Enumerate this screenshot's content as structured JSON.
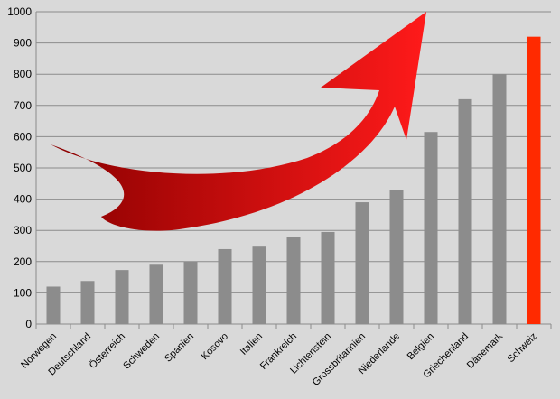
{
  "chart_data": {
    "type": "bar",
    "title": "",
    "xlabel": "",
    "ylabel": "",
    "ylim": [
      0,
      1000
    ],
    "yticks": [
      0,
      100,
      200,
      300,
      400,
      500,
      600,
      700,
      800,
      900,
      1000
    ],
    "grid": true,
    "legend": "none",
    "categories": [
      "Norwegen",
      "Deutschland",
      "Österreich",
      "Schweden",
      "Spanien",
      "Kosovo",
      "Italien",
      "Frankreich",
      "Lichtenstein",
      "Grossbritannien",
      "Niederlande",
      "Belgien",
      "Griechenland",
      "Dänemark",
      "Schweiz"
    ],
    "values": [
      120,
      138,
      173,
      190,
      200,
      240,
      248,
      280,
      295,
      390,
      428,
      615,
      720,
      800,
      920
    ],
    "highlight_category": "Schweiz",
    "colors": {
      "bar": "#8c8c8c",
      "highlight_bar": "#ff2a00",
      "arrow_light": "#ff1a1a",
      "arrow_dark": "#8a0000",
      "background": "#d9d9d9",
      "grid": "#8c8c8c"
    },
    "annotation": {
      "type": "arrow",
      "description_icon": "upward-trend-arrow-icon"
    }
  }
}
